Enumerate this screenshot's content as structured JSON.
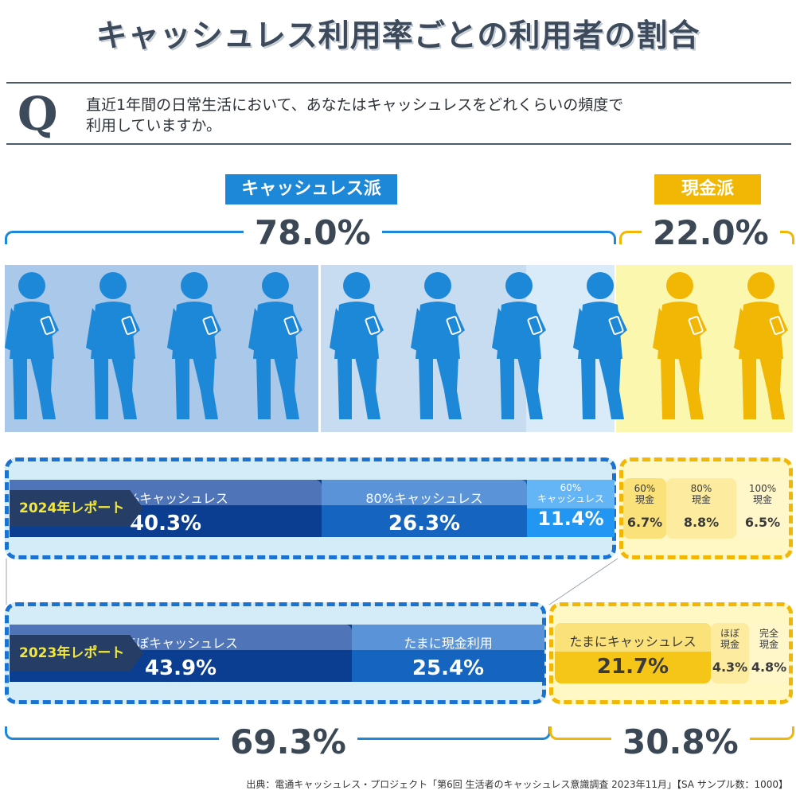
{
  "title": "キャッシュレス利用率ごとの利用者の割合",
  "question": {
    "mark": "Q",
    "line1": "直近1年間の日常生活において、あなたはキャッシュレスをどれくらいの頻度で",
    "line2": "利用していますか。"
  },
  "groups": {
    "cashless_label": "キャッシュレス派",
    "cash_label": "現金派",
    "cashless_2024_pct": "78.0%",
    "cash_2024_pct": "22.0%",
    "cashless_2023_pct": "69.3%",
    "cash_2023_pct": "30.8%"
  },
  "colors": {
    "cashless_blue": "#1e88d8",
    "cash_yellow": "#f2b705",
    "dark_navy": "#0b3d91",
    "mid_blue": "#1565c0",
    "light_blue": "#42a5f5",
    "title_gray": "#3d4a5c"
  },
  "icons": {
    "person": "person-with-smartphone-icon"
  },
  "chart_data": [
    {
      "type": "bar",
      "title": "2024年レポート",
      "segments": [
        {
          "label": "100%キャッシュレス",
          "value": 40.3,
          "display": "40.3%",
          "group": "cashless"
        },
        {
          "label": "80%キャッシュレス",
          "value": 26.3,
          "display": "26.3%",
          "group": "cashless"
        },
        {
          "label": "60%キャッシュレス",
          "value": 11.4,
          "display": "11.4%",
          "group": "cashless"
        },
        {
          "label": "60%現金",
          "value": 6.7,
          "display": "6.7%",
          "group": "cash"
        },
        {
          "label": "80%現金",
          "value": 8.8,
          "display": "8.8%",
          "group": "cash"
        },
        {
          "label": "100%現金",
          "value": 6.5,
          "display": "6.5%",
          "group": "cash"
        }
      ]
    },
    {
      "type": "bar",
      "title": "2023年レポート",
      "segments": [
        {
          "label": "ほぼキャッシュレス",
          "value": 43.9,
          "display": "43.9%",
          "group": "cashless"
        },
        {
          "label": "たまに現金利用",
          "value": 25.4,
          "display": "25.4%",
          "group": "cashless"
        },
        {
          "label": "たまにキャッシュレス",
          "value": 21.7,
          "display": "21.7%",
          "group": "cash"
        },
        {
          "label": "ほぼ現金",
          "value": 4.3,
          "display": "4.3%",
          "group": "cash"
        },
        {
          "label": "完全現金",
          "value": 4.8,
          "display": "4.8%",
          "group": "cash"
        }
      ]
    }
  ],
  "labels_2024": {
    "tag": "2024年レポート",
    "s1_label": "100%キャッシュレス",
    "s1_val": "40.3%",
    "s2_label": "80%キャッシュレス",
    "s2_val": "26.3%",
    "s3_label_a": "60%",
    "s3_label_b": "キャッシュレス",
    "s3_val": "11.4%",
    "c1_label_a": "60%",
    "c1_label_b": "現金",
    "c1_val": "6.7%",
    "c2_label_a": "80%",
    "c2_label_b": "現金",
    "c2_val": "8.8%",
    "c3_label_a": "100%",
    "c3_label_b": "現金",
    "c3_val": "6.5%"
  },
  "labels_2023": {
    "tag": "2023年レポート",
    "s1_label": "ほぼキャッシュレス",
    "s1_val": "43.9%",
    "s2_label": "たまに現金利用",
    "s2_val": "25.4%",
    "c1_label": "たまにキャッシュレス",
    "c1_val": "21.7%",
    "c2_label_a": "ほぼ",
    "c2_label_b": "現金",
    "c2_val": "4.3%",
    "c3_label_a": "完全",
    "c3_label_b": "現金",
    "c3_val": "4.8%"
  },
  "source": "出典：電通キャッシュレス・プロジェクト「第6回 生活者のキャッシュレス意識調査 2023年11月」【SA サンプル数：1000】"
}
